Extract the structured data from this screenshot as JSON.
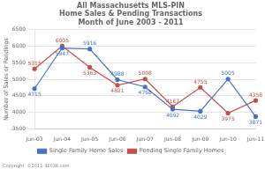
{
  "chart_data": {
    "type": "line",
    "title": "All Massachusetts MLS-PIN\nHome Sales & Pending Transactions\nMonth of June 2003 - 2011",
    "ylabel": "Number of Sales or Pendings",
    "categories": [
      "Jun-03",
      "Jun-04",
      "Jun-05",
      "Jun-06",
      "Jun-07",
      "Jun-08",
      "Jun-09",
      "Jun-10",
      "Jun-11"
    ],
    "series": [
      {
        "name": "Single Family Home Sales",
        "color": "#4472C4",
        "marker": "circle",
        "values": [
          4715,
          5947,
          5916,
          4988,
          4768,
          4092,
          4029,
          5005,
          3871
        ]
      },
      {
        "name": "Pending Single Family Homes",
        "color": "#C0504D",
        "marker": "circle",
        "values": [
          5315,
          6005,
          5363,
          4821,
          5008,
          4167,
          4755,
          3975,
          4358
        ]
      }
    ],
    "ylim": [
      3500,
      6500
    ],
    "yticks": [
      3500,
      4000,
      4500,
      5000,
      5500,
      6000,
      6500
    ],
    "grid": true,
    "legend": "bottom",
    "data_labels": true,
    "annotations": [
      "Copyright  ©2011-32038.com"
    ]
  }
}
